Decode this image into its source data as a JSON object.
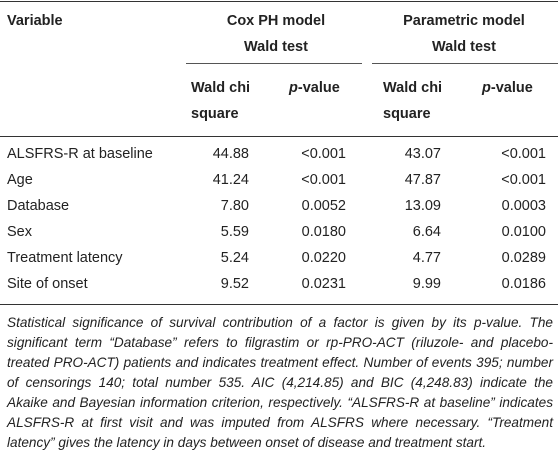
{
  "table": {
    "header": {
      "variable": "Variable",
      "group_cox_line1": "Cox PH model",
      "group_cox_line2": "Wald test",
      "group_param_line1": "Parametric model",
      "group_param_line2": "Wald test",
      "col_chi_line1": "Wald chi",
      "col_chi_line2": "square",
      "col_p_italic": "p",
      "col_p_rest": "-value"
    },
    "rows": [
      {
        "variable": "ALSFRS-R at baseline",
        "cox_chi": "44.88",
        "cox_p": "<0.001",
        "param_chi": "43.07",
        "param_p": "<0.001"
      },
      {
        "variable": "Age",
        "cox_chi": "41.24",
        "cox_p": "<0.001",
        "param_chi": "47.87",
        "param_p": "<0.001"
      },
      {
        "variable": "Database",
        "cox_chi": "7.80",
        "cox_p": "0.0052",
        "param_chi": "13.09",
        "param_p": "0.0003"
      },
      {
        "variable": "Sex",
        "cox_chi": "5.59",
        "cox_p": "0.0180",
        "param_chi": "6.64",
        "param_p": "0.0100"
      },
      {
        "variable": "Treatment latency",
        "cox_chi": "5.24",
        "cox_p": "0.0220",
        "param_chi": "4.77",
        "param_p": "0.0289"
      },
      {
        "variable": "Site of onset",
        "cox_chi": "9.52",
        "cox_p": "0.0231",
        "param_chi": "9.99",
        "param_p": "0.0186"
      }
    ]
  },
  "footnote": "Statistical significance of survival contribution of a factor is given by its p-value. The significant term “Database” refers to filgrastim or rp-PRO-ACT (riluzole- and placebo-treated PRO-ACT) patients and indicates treatment effect. Number of events 395; number of censorings 140; total number 535. AIC (4,214.85) and BIC (4,248.83) indicate the Akaike and Bayesian information criterion, respectively. “ALSFRS-R at baseline” indicates ALSFRS-R at first visit and was imputed from ALSFRS where necessary. “Treatment latency” gives the latency in days between onset of disease and treatment start."
}
